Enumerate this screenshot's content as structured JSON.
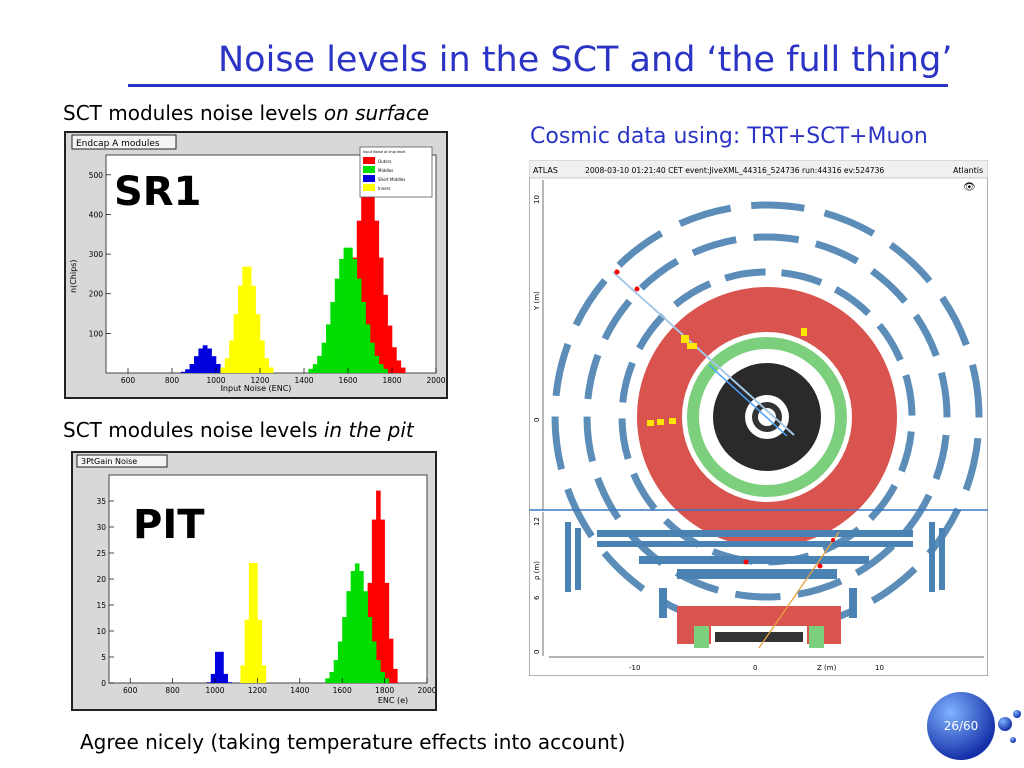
{
  "slide": {
    "title": "Noise levels in the SCT and ‘the full thing’",
    "caption_surface_prefix": "SCT modules noise levels ",
    "caption_surface_italic": "on surface",
    "caption_pit_prefix": "SCT modules noise levels ",
    "caption_pit_italic": "in the pit",
    "cosmic_title": "Cosmic data using: TRT+SCT+Muon",
    "footer": "Agree nicely (taking temperature effects into account)",
    "page_number": "26/60"
  },
  "chart_data": [
    {
      "type": "bar",
      "panel_title": "Endcap A modules",
      "big_label": "SR1",
      "xlabel": "Input Noise (ENC)",
      "ylabel": "n(Chips)",
      "xlim": [
        500,
        2000
      ],
      "ylim": [
        0,
        550
      ],
      "xticks": [
        "600",
        "800",
        "1000",
        "1200",
        "1400",
        "1600",
        "1800",
        "2000"
      ],
      "yticks": [
        "100",
        "200",
        "300",
        "400",
        "500"
      ],
      "legend": {
        "title": "Input Noise of chip level",
        "entries": [
          "Outers",
          "Middles",
          "Short Middles",
          "Inners"
        ]
      },
      "series": [
        {
          "name": "Outers",
          "color": "#ff0000",
          "center": 1690,
          "sigma": 60,
          "peak": 480
        },
        {
          "name": "Middles",
          "color": "#00dd00",
          "center": 1600,
          "sigma": 65,
          "peak": 320
        },
        {
          "name": "Short Middles",
          "color": "#0000dd",
          "center": 950,
          "sigma": 40,
          "peak": 70
        },
        {
          "name": "Inners",
          "color": "#ffff00",
          "center": 1140,
          "sigma": 45,
          "peak": 275
        }
      ]
    },
    {
      "type": "bar",
      "panel_title": "3PtGain Noise",
      "big_label": "PIT",
      "xlabel": "ENC (e)",
      "ylabel": "",
      "xlim": [
        500,
        2000
      ],
      "ylim": [
        0,
        40
      ],
      "xticks": [
        "600",
        "800",
        "1000",
        "1200",
        "1400",
        "1600",
        "1800",
        "2000"
      ],
      "yticks": [
        "0",
        "5",
        "10",
        "15",
        "20",
        "25",
        "30",
        "35"
      ],
      "series": [
        {
          "name": "Outers",
          "color": "#ff0000",
          "center": 1770,
          "sigma": 35,
          "peak": 37
        },
        {
          "name": "Middles",
          "color": "#00dd00",
          "center": 1670,
          "sigma": 55,
          "peak": 23
        },
        {
          "name": "Short Middles",
          "color": "#0000dd",
          "center": 1020,
          "sigma": 18,
          "peak": 7
        },
        {
          "name": "Inners",
          "color": "#ffff00",
          "center": 1180,
          "sigma": 25,
          "peak": 25
        }
      ]
    }
  ],
  "event_display": {
    "header_left": "ATLAS",
    "header_mid": "2008-03-10 01:21:40 CET event:JiveXML_44316_524736 run:44316 ev:524736",
    "header_right": "Atlantis",
    "y_axis_label": "Y (m)",
    "y_ticks": [
      "10",
      "0"
    ],
    "lower_y_label": "ρ (m)",
    "lower_y_ticks": [
      "12",
      "6",
      "0"
    ],
    "lower_x_label": "Z (m)",
    "lower_x_ticks": [
      "-10",
      "0",
      "10"
    ],
    "colors": {
      "calo_red": "#d9534f",
      "calo_green": "#7ccf7c",
      "muon_blue": "#5b8db8",
      "frame_blue": "#3a78c2"
    }
  }
}
